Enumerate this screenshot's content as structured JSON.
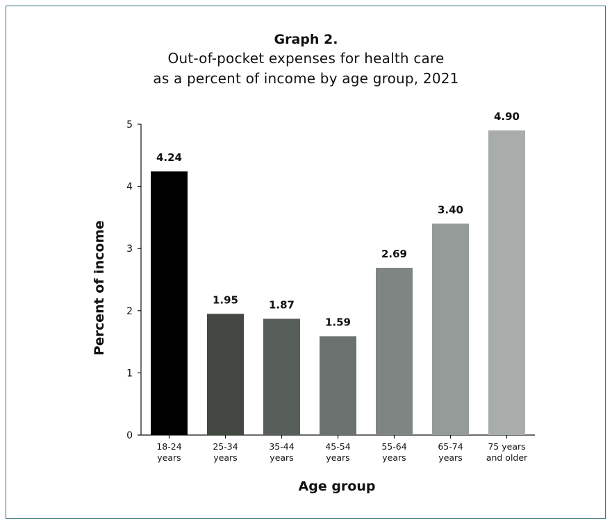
{
  "chart_data": {
    "type": "bar",
    "title": "Graph 2.",
    "subtitle": [
      "Out-of-pocket expenses for health care",
      "as a percent of income by age group, 2021"
    ],
    "xlabel": "Age group",
    "ylabel": "Percent of income",
    "categories": [
      [
        "18-24",
        "years"
      ],
      [
        "25-34",
        "years"
      ],
      [
        "35-44",
        "years"
      ],
      [
        "45-54",
        "years"
      ],
      [
        "55-64",
        "years"
      ],
      [
        "65-74",
        "years"
      ],
      [
        "75 years",
        "and older"
      ]
    ],
    "values": [
      4.24,
      1.95,
      1.87,
      1.59,
      2.69,
      3.4,
      4.9
    ],
    "value_labels": [
      "4.24",
      "1.95",
      "1.87",
      "1.59",
      "2.69",
      "3.40",
      "4.90"
    ],
    "bar_colors": [
      "#000000",
      "#434843",
      "#585e5a",
      "#6b716f",
      "#7f8583",
      "#959b99",
      "#a8acab"
    ],
    "ylim": [
      0,
      5
    ],
    "yticks": [
      "0",
      "1",
      "2",
      "3",
      "4",
      "5"
    ],
    "grid": false,
    "legend": "none"
  }
}
